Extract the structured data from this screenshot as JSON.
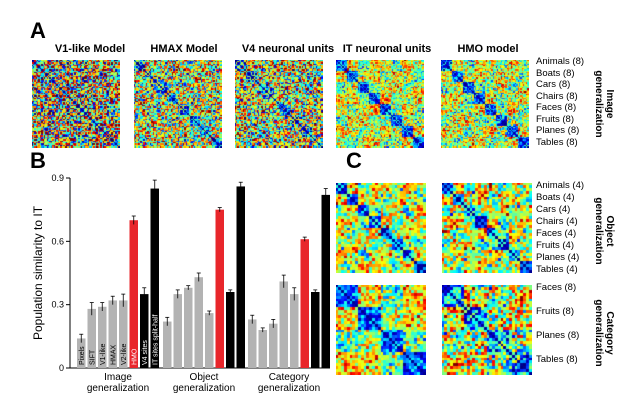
{
  "panels": {
    "a": "A",
    "b": "B",
    "c": "C"
  },
  "panel_a": {
    "models": [
      "V1-like Model",
      "HMAX Model",
      "V4 neuronal units",
      "IT neuronal units",
      "HMO model"
    ],
    "categories": [
      "Animals (8)",
      "Boats (8)",
      "Cars (8)",
      "Chairs (8)",
      "Faces (8)",
      "Fruits (8)",
      "Planes (8)",
      "Tables (8)"
    ],
    "side_label": [
      "Image",
      "generalization"
    ]
  },
  "panel_c": {
    "object_categories": [
      "Animals (4)",
      "Boats (4)",
      "Cars (4)",
      "Chairs (4)",
      "Faces (4)",
      "Fruits (4)",
      "Planes (4)",
      "Tables (4)"
    ],
    "object_label": [
      "Object",
      "generalization"
    ],
    "category_categories": [
      "Faces (8)",
      "Fruits (8)",
      "Planes (8)",
      "Tables (8)"
    ],
    "category_label": [
      "Category",
      "generalization"
    ]
  },
  "colors": {
    "gray": "#b3b3b3",
    "red": "#e8262b",
    "black": "#000000"
  },
  "chart_data": {
    "type": "bar",
    "ylabel": "Population similarity to IT",
    "ylim": [
      0,
      0.9
    ],
    "yticks": [
      "0",
      "0.3",
      "0.6",
      "0.9"
    ],
    "groups": [
      "Image\ngeneralization",
      "Object\ngeneralization",
      "Category\ngeneralization"
    ],
    "bar_labels": [
      "Pixels",
      "SIFT",
      "V1-like",
      "HMAX",
      "V2-like",
      "HMO",
      "V4 sites",
      "IT sites split-half"
    ],
    "bar_colors": [
      "gray",
      "gray",
      "gray",
      "gray",
      "gray",
      "red",
      "black",
      "black"
    ],
    "values": [
      [
        0.14,
        0.28,
        0.29,
        0.32,
        0.32,
        0.7,
        0.35,
        0.85
      ],
      [
        0.22,
        0.35,
        0.38,
        0.43,
        0.26,
        0.75,
        0.36,
        0.86
      ],
      [
        0.23,
        0.18,
        0.21,
        0.41,
        0.35,
        0.61,
        0.36,
        0.82
      ]
    ],
    "errors": [
      [
        0.02,
        0.03,
        0.02,
        0.02,
        0.03,
        0.02,
        0.03,
        0.04
      ],
      [
        0.02,
        0.02,
        0.01,
        0.02,
        0.01,
        0.01,
        0.01,
        0.02
      ],
      [
        0.02,
        0.01,
        0.02,
        0.03,
        0.03,
        0.01,
        0.01,
        0.03
      ]
    ]
  }
}
